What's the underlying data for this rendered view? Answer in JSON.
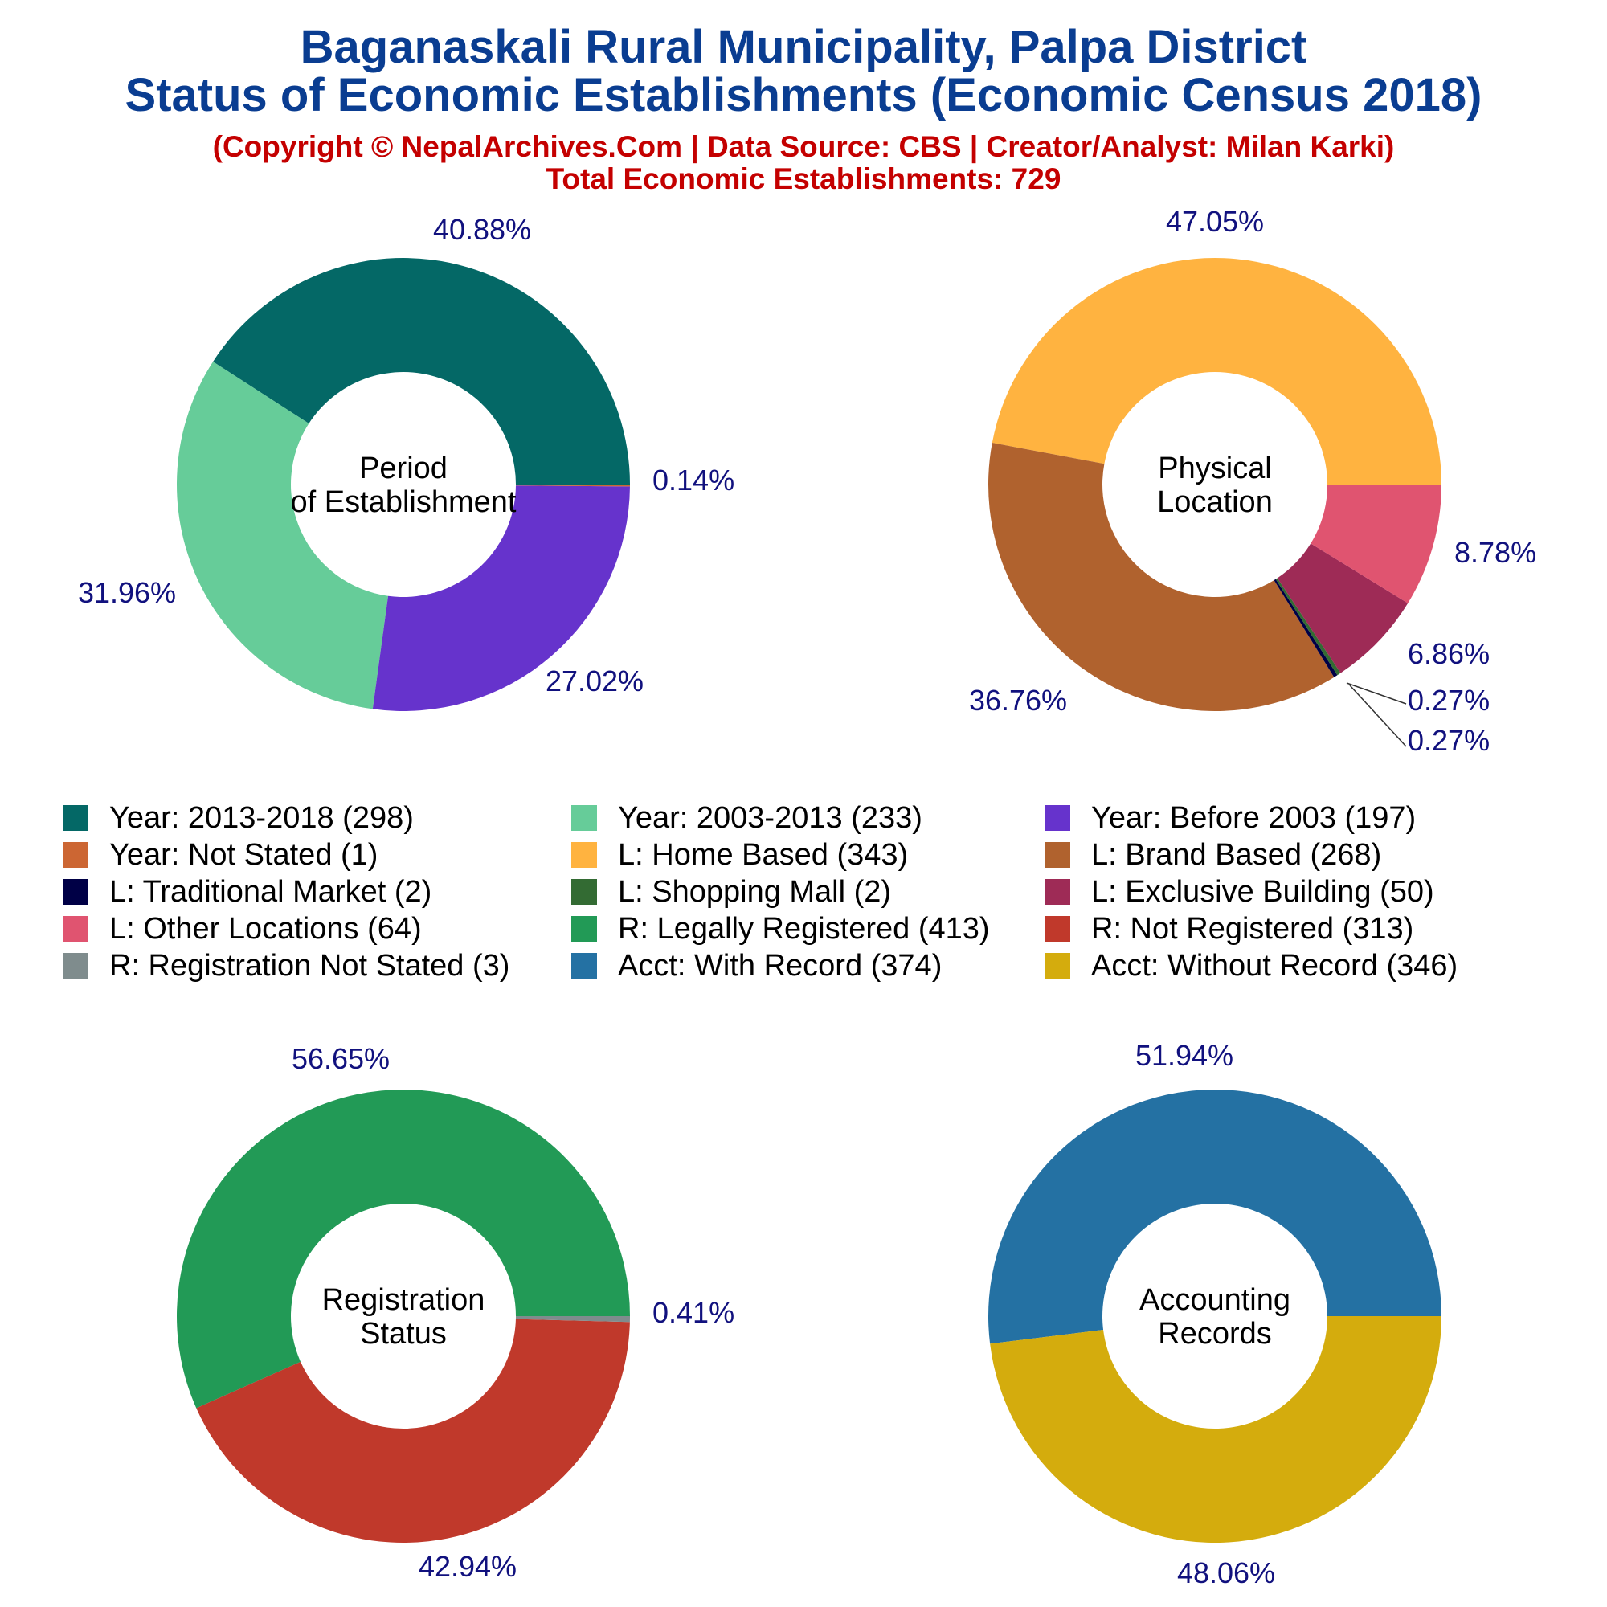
{
  "header": {
    "title_line1": "Baganaskali Rural Municipality, Palpa District",
    "title_line2": "Status of Economic Establishments (Economic Census 2018)",
    "copyright": "(Copyright © NepalArchives.Com | Data Source: CBS | Creator/Analyst: Milan Karki)",
    "total": "Total Economic Establishments: 729"
  },
  "colors": {
    "title": "#0a3d91",
    "subtitle": "#c40000",
    "percent_labels": "#11117e"
  },
  "legend": [
    {
      "label": "Year: 2013-2018 (298)",
      "color": "#046866"
    },
    {
      "label": "Year: 2003-2013 (233)",
      "color": "#66cc99"
    },
    {
      "label": "Year: Before 2003 (197)",
      "color": "#6633cc"
    },
    {
      "label": "Year: Not Stated (1)",
      "color": "#cc6633"
    },
    {
      "label": "L: Home Based (343)",
      "color": "#ffb340"
    },
    {
      "label": "L: Brand Based (268)",
      "color": "#b0622e"
    },
    {
      "label": "L: Traditional Market (2)",
      "color": "#000046"
    },
    {
      "label": "L: Shopping Mall (2)",
      "color": "#336b33"
    },
    {
      "label": "L: Exclusive Building (50)",
      "color": "#9e2b56"
    },
    {
      "label": "L: Other Locations (64)",
      "color": "#e05470"
    },
    {
      "label": "R: Legally Registered (413)",
      "color": "#229a56"
    },
    {
      "label": "R: Not Registered (313)",
      "color": "#c0392b"
    },
    {
      "label": "R: Registration Not Stated (3)",
      "color": "#7f8c8d"
    },
    {
      "label": "Acct: With Record (374)",
      "color": "#2471a3"
    },
    {
      "label": "Acct: Without Record (346)",
      "color": "#d4ac0d"
    }
  ],
  "chart_data": [
    {
      "type": "pie",
      "title": "Period of Establishment",
      "slices": [
        {
          "name": "Year: 2013-2018",
          "value": 298,
          "pct_label": "40.88%",
          "color": "#046866"
        },
        {
          "name": "Year: 2003-2013",
          "value": 233,
          "pct_label": "31.96%",
          "color": "#66cc99"
        },
        {
          "name": "Year: Before 2003",
          "value": 197,
          "pct_label": "27.02%",
          "color": "#6633cc"
        },
        {
          "name": "Year: Not Stated",
          "value": 1,
          "pct_label": "0.14%",
          "color": "#cc6633"
        }
      ]
    },
    {
      "type": "pie",
      "title": "Physical Location",
      "slices": [
        {
          "name": "L: Home Based",
          "value": 343,
          "pct_label": "47.05%",
          "color": "#ffb340"
        },
        {
          "name": "L: Brand Based",
          "value": 268,
          "pct_label": "36.76%",
          "color": "#b0622e"
        },
        {
          "name": "L: Traditional Market",
          "value": 2,
          "pct_label": "0.27%",
          "color": "#000046"
        },
        {
          "name": "L: Shopping Mall",
          "value": 2,
          "pct_label": "0.27%",
          "color": "#336b33"
        },
        {
          "name": "L: Exclusive Building",
          "value": 50,
          "pct_label": "6.86%",
          "color": "#9e2b56"
        },
        {
          "name": "L: Other Locations",
          "value": 64,
          "pct_label": "8.78%",
          "color": "#e05470"
        }
      ]
    },
    {
      "type": "pie",
      "title": "Registration Status",
      "slices": [
        {
          "name": "R: Legally Registered",
          "value": 413,
          "pct_label": "56.65%",
          "color": "#229a56"
        },
        {
          "name": "R: Not Registered",
          "value": 313,
          "pct_label": "42.94%",
          "color": "#c0392b"
        },
        {
          "name": "R: Registration Not Stated",
          "value": 3,
          "pct_label": "0.41%",
          "color": "#7f8c8d"
        }
      ]
    },
    {
      "type": "pie",
      "title": "Accounting Records",
      "slices": [
        {
          "name": "Acct: With Record",
          "value": 374,
          "pct_label": "51.94%",
          "color": "#2471a3"
        },
        {
          "name": "Acct: Without Record",
          "value": 346,
          "pct_label": "48.06%",
          "color": "#d4ac0d"
        }
      ]
    }
  ]
}
